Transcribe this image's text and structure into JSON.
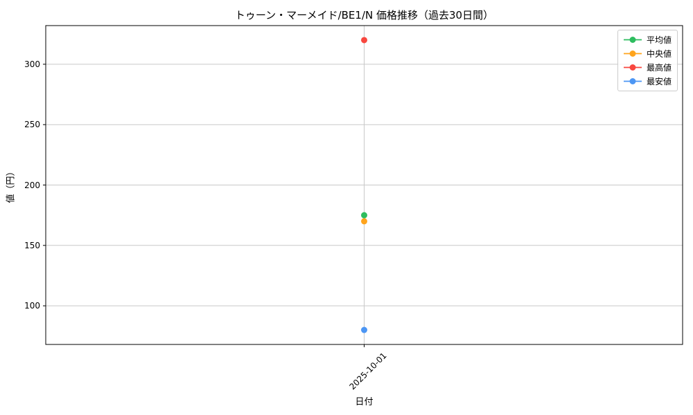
{
  "chart_data": {
    "type": "line",
    "title": "トゥーン・マーメイド/BE1/N 価格推移（過去30日間）",
    "xlabel": "日付",
    "ylabel": "値（円）",
    "categories": [
      "2025-10-01"
    ],
    "series": [
      {
        "name": "平均値",
        "color": "#2EBD5F",
        "values": [
          175
        ]
      },
      {
        "name": "中央値",
        "color": "#FFA41C",
        "values": [
          170
        ]
      },
      {
        "name": "最高値",
        "color": "#F8473F",
        "values": [
          320
        ]
      },
      {
        "name": "最安値",
        "color": "#4C96F4",
        "values": [
          80
        ]
      }
    ],
    "ylim": [
      68,
      332
    ],
    "yticks": [
      100,
      150,
      200,
      250,
      300
    ],
    "grid": true,
    "grid_color": "#C8C8C8",
    "axis_color": "#000000",
    "marker": "circle",
    "legend_position": "upper right",
    "background": "#FFFFFF"
  }
}
